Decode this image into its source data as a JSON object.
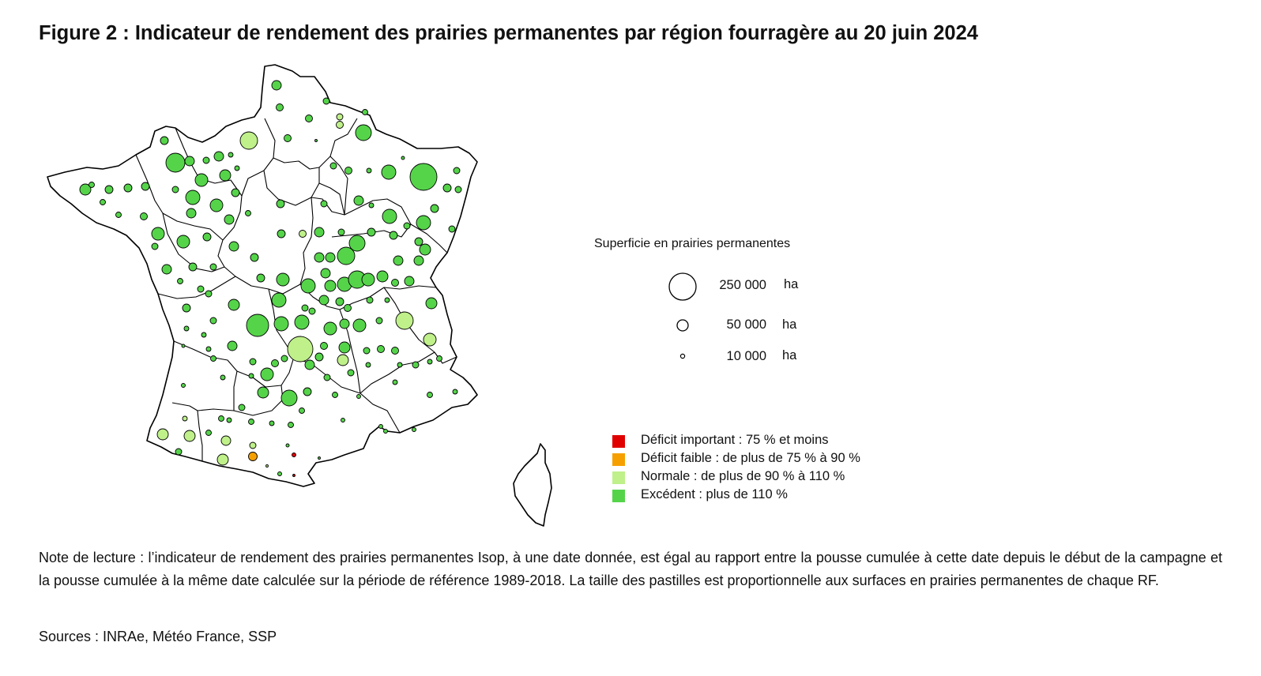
{
  "title": "Figure 2 : Indicateur de rendement des prairies permanentes par région fourragère au 20 juin 2024",
  "legend_size": {
    "title": "Superficie en prairies permanentes",
    "items": [
      {
        "value": "250 000",
        "unit": "ha"
      },
      {
        "value": "50 000",
        "unit": "ha"
      },
      {
        "value": "10 000",
        "unit": "ha"
      }
    ]
  },
  "legend_categories": [
    {
      "label": "Déficit important : 75 % et moins",
      "color": "#e00000"
    },
    {
      "label": "Déficit faible :  de plus de 75 % à 90 %",
      "color": "#f5a000"
    },
    {
      "label": "Normale : de plus de 90 % à 110 %",
      "color": "#bff08a"
    },
    {
      "label": "Excédent : plus de 110 %",
      "color": "#55d44a"
    }
  ],
  "note": "Note de lecture : l’indicateur de rendement des prairies permanentes Isop, à une date donnée, est égal au rapport entre la pousse cumulée à cette date depuis le début de la campagne et la pousse cumulée à la même date calculée sur la période de référence 1989-2018. La taille des pastilles est proportionnelle aux surfaces en prairies permanentes de chaque RF.",
  "sources": "Sources : INRAe, Météo France, SSP"
}
